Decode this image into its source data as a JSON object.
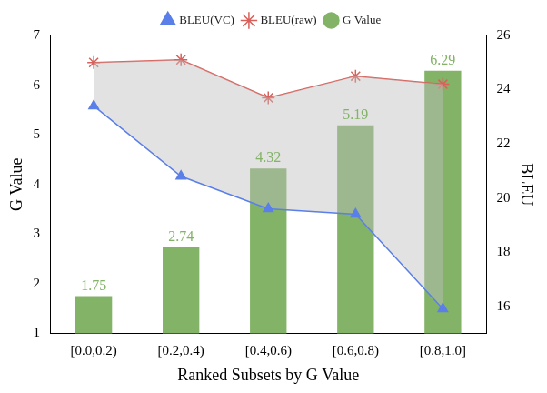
{
  "chart_data": {
    "type": "bar",
    "categories": [
      "[0.0,0.2)",
      "[0.2,0.4)",
      "[0.4,0.6)",
      "[0.6,0.8)",
      "[0.8,1.0]"
    ],
    "x_label": "Ranked Subsets by G Value",
    "y_label": "G Value",
    "y2_label": "BLEU",
    "ylim": [
      1,
      7
    ],
    "yticks": [
      1,
      2,
      3,
      4,
      5,
      6,
      7
    ],
    "y2lim": [
      15,
      26
    ],
    "y2ticks": [
      16,
      18,
      20,
      22,
      24,
      26
    ],
    "grid": false,
    "legend": "top",
    "series": [
      {
        "name": "BLEU(VC)",
        "type": "line",
        "axis": "y2",
        "color": "#5b7fe8",
        "marker": "triangle",
        "values": [
          23.4,
          20.8,
          19.6,
          19.4,
          15.9
        ]
      },
      {
        "name": "BLEU(raw)",
        "type": "line",
        "axis": "y2",
        "color": "#d9605a",
        "marker": "star",
        "values": [
          25.0,
          25.1,
          23.7,
          24.5,
          24.2
        ]
      },
      {
        "name": "G Value",
        "type": "bar",
        "color": "#82b366",
        "data_labels": true,
        "values": [
          1.75,
          2.74,
          4.32,
          5.19,
          6.29
        ]
      }
    ]
  }
}
